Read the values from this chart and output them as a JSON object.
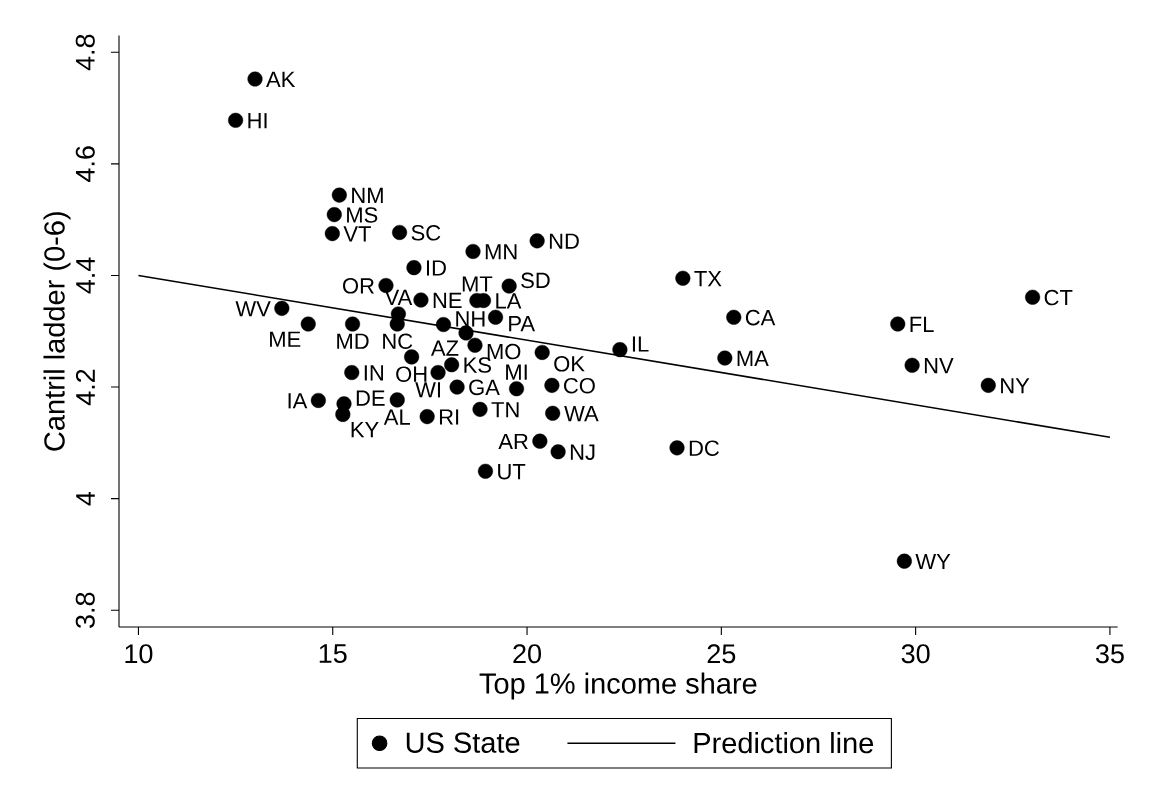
{
  "chart_data": {
    "type": "scatter",
    "xlabel": "Top 1% income share",
    "ylabel": "Cantril ladder (0-6)",
    "xlim": [
      9.5,
      35.2
    ],
    "ylim": [
      3.77,
      4.83
    ],
    "xticks": [
      10,
      15,
      20,
      25,
      30,
      35
    ],
    "yticks": [
      3.8,
      4,
      4.2,
      4.4,
      4.6,
      4.8
    ],
    "legend": "bottom",
    "marker": "circle",
    "series": [
      {
        "name": "US State",
        "color": "#000000",
        "x": [
          13.0,
          12.5,
          15.17,
          15.04,
          14.99,
          16.72,
          18.61,
          20.26,
          17.09,
          16.37,
          19.54,
          17.27,
          18.71,
          18.88,
          13.69,
          14.37,
          15.51,
          16.69,
          16.66,
          17.85,
          19.19,
          18.43,
          18.66,
          20.39,
          17.03,
          18.06,
          17.71,
          15.49,
          18.2,
          19.73,
          20.64,
          14.63,
          15.29,
          15.26,
          16.66,
          17.43,
          18.79,
          20.66,
          20.33,
          20.8,
          18.93,
          24.01,
          25.32,
          22.39,
          25.09,
          23.86,
          33.01,
          29.54,
          29.91,
          31.87,
          29.71
        ],
        "values": [
          4.752,
          4.678,
          4.544,
          4.509,
          4.475,
          4.477,
          4.443,
          4.462,
          4.414,
          4.382,
          4.381,
          4.356,
          4.355,
          4.355,
          4.341,
          4.313,
          4.313,
          4.331,
          4.313,
          4.312,
          4.325,
          4.297,
          4.275,
          4.262,
          4.254,
          4.24,
          4.226,
          4.226,
          4.2,
          4.197,
          4.203,
          4.176,
          4.17,
          4.151,
          4.177,
          4.147,
          4.16,
          4.153,
          4.103,
          4.084,
          4.049,
          4.395,
          4.325,
          4.267,
          4.252,
          4.091,
          4.361,
          4.313,
          4.239,
          4.203,
          3.888
        ]
      },
      {
        "name": "Prediction line",
        "type": "line",
        "color": "#000000",
        "marker": "none",
        "line_style": "solid",
        "x": [
          10,
          35
        ],
        "values": [
          4.4,
          4.11
        ]
      }
    ],
    "annotations": [
      {
        "text": "AK",
        "x": 13.0,
        "y": 4.752
      },
      {
        "text": "HI",
        "x": 12.5,
        "y": 4.678
      },
      {
        "text": "NM",
        "x": 15.17,
        "y": 4.544
      },
      {
        "text": "MS",
        "x": 15.04,
        "y": 4.509
      },
      {
        "text": "VT",
        "x": 14.99,
        "y": 4.475
      },
      {
        "text": "SC",
        "x": 16.72,
        "y": 4.477
      },
      {
        "text": "MN",
        "x": 18.61,
        "y": 4.443
      },
      {
        "text": "ND",
        "x": 20.26,
        "y": 4.462
      },
      {
        "text": "ID",
        "x": 17.09,
        "y": 4.414
      },
      {
        "text": "OR",
        "x": 16.37,
        "y": 4.382
      },
      {
        "text": "SD",
        "x": 19.54,
        "y": 4.381
      },
      {
        "text": "NE",
        "x": 17.27,
        "y": 4.356
      },
      {
        "text": "MT",
        "x": 18.71,
        "y": 4.355
      },
      {
        "text": "LA",
        "x": 18.88,
        "y": 4.355
      },
      {
        "text": "WV",
        "x": 13.69,
        "y": 4.341
      },
      {
        "text": "ME",
        "x": 14.37,
        "y": 4.313
      },
      {
        "text": "MD",
        "x": 15.51,
        "y": 4.313
      },
      {
        "text": "VA",
        "x": 16.69,
        "y": 4.331
      },
      {
        "text": "NC",
        "x": 16.66,
        "y": 4.313
      },
      {
        "text": "NH",
        "x": 17.85,
        "y": 4.312
      },
      {
        "text": "PA",
        "x": 19.19,
        "y": 4.325
      },
      {
        "text": "AZ",
        "x": 18.43,
        "y": 4.297
      },
      {
        "text": "MO",
        "x": 18.66,
        "y": 4.275
      },
      {
        "text": "OK",
        "x": 20.39,
        "y": 4.262
      },
      {
        "text": "OH",
        "x": 17.03,
        "y": 4.254
      },
      {
        "text": "KS",
        "x": 18.06,
        "y": 4.24
      },
      {
        "text": "WI",
        "x": 17.71,
        "y": 4.226
      },
      {
        "text": "IN",
        "x": 15.49,
        "y": 4.226
      },
      {
        "text": "GA",
        "x": 18.2,
        "y": 4.2
      },
      {
        "text": "MI",
        "x": 19.73,
        "y": 4.197
      },
      {
        "text": "CO",
        "x": 20.64,
        "y": 4.203
      },
      {
        "text": "IA",
        "x": 14.63,
        "y": 4.176
      },
      {
        "text": "DE",
        "x": 15.29,
        "y": 4.17
      },
      {
        "text": "KY",
        "x": 15.26,
        "y": 4.151
      },
      {
        "text": "AL",
        "x": 16.66,
        "y": 4.177
      },
      {
        "text": "RI",
        "x": 17.43,
        "y": 4.147
      },
      {
        "text": "TN",
        "x": 18.79,
        "y": 4.16
      },
      {
        "text": "WA",
        "x": 20.66,
        "y": 4.153
      },
      {
        "text": "AR",
        "x": 20.33,
        "y": 4.103
      },
      {
        "text": "NJ",
        "x": 20.8,
        "y": 4.084
      },
      {
        "text": "UT",
        "x": 18.93,
        "y": 4.049
      },
      {
        "text": "TX",
        "x": 24.01,
        "y": 4.395
      },
      {
        "text": "CA",
        "x": 25.32,
        "y": 4.325
      },
      {
        "text": "IL",
        "x": 22.39,
        "y": 4.267
      },
      {
        "text": "MA",
        "x": 25.09,
        "y": 4.252
      },
      {
        "text": "DC",
        "x": 23.86,
        "y": 4.091
      },
      {
        "text": "CT",
        "x": 33.01,
        "y": 4.361
      },
      {
        "text": "FL",
        "x": 29.54,
        "y": 4.313
      },
      {
        "text": "NV",
        "x": 29.91,
        "y": 4.239
      },
      {
        "text": "NY",
        "x": 31.87,
        "y": 4.203
      },
      {
        "text": "WY",
        "x": 29.71,
        "y": 3.888
      }
    ]
  }
}
